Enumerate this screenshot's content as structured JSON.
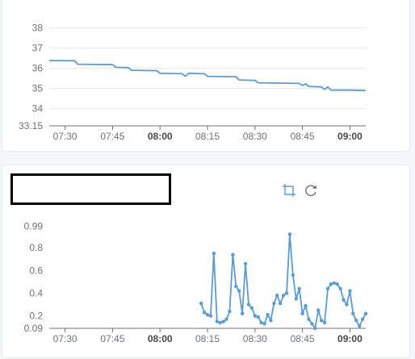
{
  "charts": [
    {
      "chart_data": {
        "type": "line",
        "x_ticks": [
          "07:30",
          "07:45",
          "08:00",
          "08:15",
          "08:30",
          "08:45",
          "09:00"
        ],
        "x_ticks_bold": [
          "08:00",
          "09:00"
        ],
        "y_ticks": [
          "38",
          "37",
          "36",
          "35",
          "34",
          "33.15"
        ],
        "ylim": [
          33.15,
          38
        ],
        "xlim": [
          "07:25",
          "09:05"
        ],
        "grid": true,
        "series": [
          {
            "color": "#5b9bd0",
            "points": [
              [
                "07:25",
                36.38
              ],
              [
                "07:33",
                36.37
              ],
              [
                "07:34",
                36.2
              ],
              [
                "07:45",
                36.18
              ],
              [
                "07:46",
                36.05
              ],
              [
                "07:50",
                36.03
              ],
              [
                "07:51",
                35.9
              ],
              [
                "07:59",
                35.88
              ],
              [
                "08:00",
                35.75
              ],
              [
                "08:07",
                35.73
              ],
              [
                "08:08",
                35.6
              ],
              [
                "08:09",
                35.75
              ],
              [
                "08:14",
                35.73
              ],
              [
                "08:15",
                35.6
              ],
              [
                "08:24",
                35.58
              ],
              [
                "08:25",
                35.42
              ],
              [
                "08:30",
                35.4
              ],
              [
                "08:31",
                35.28
              ],
              [
                "08:44",
                35.25
              ],
              [
                "08:45",
                35.15
              ],
              [
                "08:46",
                35.23
              ],
              [
                "08:47",
                35.1
              ],
              [
                "08:51",
                35.08
              ],
              [
                "08:52",
                34.95
              ],
              [
                "08:53",
                35.08
              ],
              [
                "08:54",
                34.92
              ],
              [
                "09:00",
                34.92
              ],
              [
                "09:05",
                34.9
              ]
            ]
          }
        ]
      }
    },
    {
      "chart_data": {
        "type": "line",
        "x_ticks": [
          "07:30",
          "07:45",
          "08:00",
          "08:15",
          "08:30",
          "08:45",
          "09:00"
        ],
        "x_ticks_bold": [
          "08:00",
          "09:00"
        ],
        "y_ticks": [
          "0.99",
          "0.8",
          "0.6",
          "0.4",
          "0.2",
          "0.09"
        ],
        "ylim": [
          0.09,
          0.99
        ],
        "xlim": [
          "07:25",
          "09:05"
        ],
        "grid": false,
        "markers": true,
        "series": [
          {
            "color": "#5b9bd0",
            "points": [
              [
                "08:13",
                0.31
              ],
              [
                "08:14",
                0.23
              ],
              [
                "08:15",
                0.21
              ],
              [
                "08:16",
                0.2
              ],
              [
                "08:17",
                0.75
              ],
              [
                "08:18",
                0.15
              ],
              [
                "08:19",
                0.14
              ],
              [
                "08:20",
                0.15
              ],
              [
                "08:21",
                0.17
              ],
              [
                "08:22",
                0.24
              ],
              [
                "08:23",
                0.74
              ],
              [
                "08:24",
                0.46
              ],
              [
                "08:25",
                0.42
              ],
              [
                "08:26",
                0.22
              ],
              [
                "08:27",
                0.66
              ],
              [
                "08:28",
                0.3
              ],
              [
                "08:29",
                0.27
              ],
              [
                "08:30",
                0.2
              ],
              [
                "08:31",
                0.19
              ],
              [
                "08:32",
                0.14
              ],
              [
                "08:33",
                0.13
              ],
              [
                "08:34",
                0.21
              ],
              [
                "08:35",
                0.16
              ],
              [
                "08:36",
                0.31
              ],
              [
                "08:37",
                0.38
              ],
              [
                "08:38",
                0.31
              ],
              [
                "08:39",
                0.38
              ],
              [
                "08:40",
                0.4
              ],
              [
                "08:41",
                0.92
              ],
              [
                "08:42",
                0.56
              ],
              [
                "08:43",
                0.35
              ],
              [
                "08:44",
                0.44
              ],
              [
                "08:45",
                0.22
              ],
              [
                "08:46",
                0.29
              ],
              [
                "08:47",
                0.17
              ],
              [
                "08:48",
                0.13
              ],
              [
                "08:49",
                0.09
              ],
              [
                "08:50",
                0.25
              ],
              [
                "08:51",
                0.16
              ],
              [
                "08:52",
                0.14
              ],
              [
                "08:53",
                0.44
              ],
              [
                "08:54",
                0.48
              ],
              [
                "08:55",
                0.49
              ],
              [
                "08:56",
                0.48
              ],
              [
                "08:57",
                0.44
              ],
              [
                "08:58",
                0.34
              ],
              [
                "08:59",
                0.3
              ],
              [
                "09:00",
                0.42
              ],
              [
                "09:01",
                0.22
              ],
              [
                "09:02",
                0.16
              ],
              [
                "09:03",
                0.11
              ],
              [
                "09:04",
                0.17
              ],
              [
                "09:05",
                0.22
              ]
            ]
          }
        ]
      }
    }
  ],
  "toolbar": {
    "icons": [
      "crop-icon",
      "refresh-icon"
    ],
    "accent_color": "#5b9bd0"
  }
}
